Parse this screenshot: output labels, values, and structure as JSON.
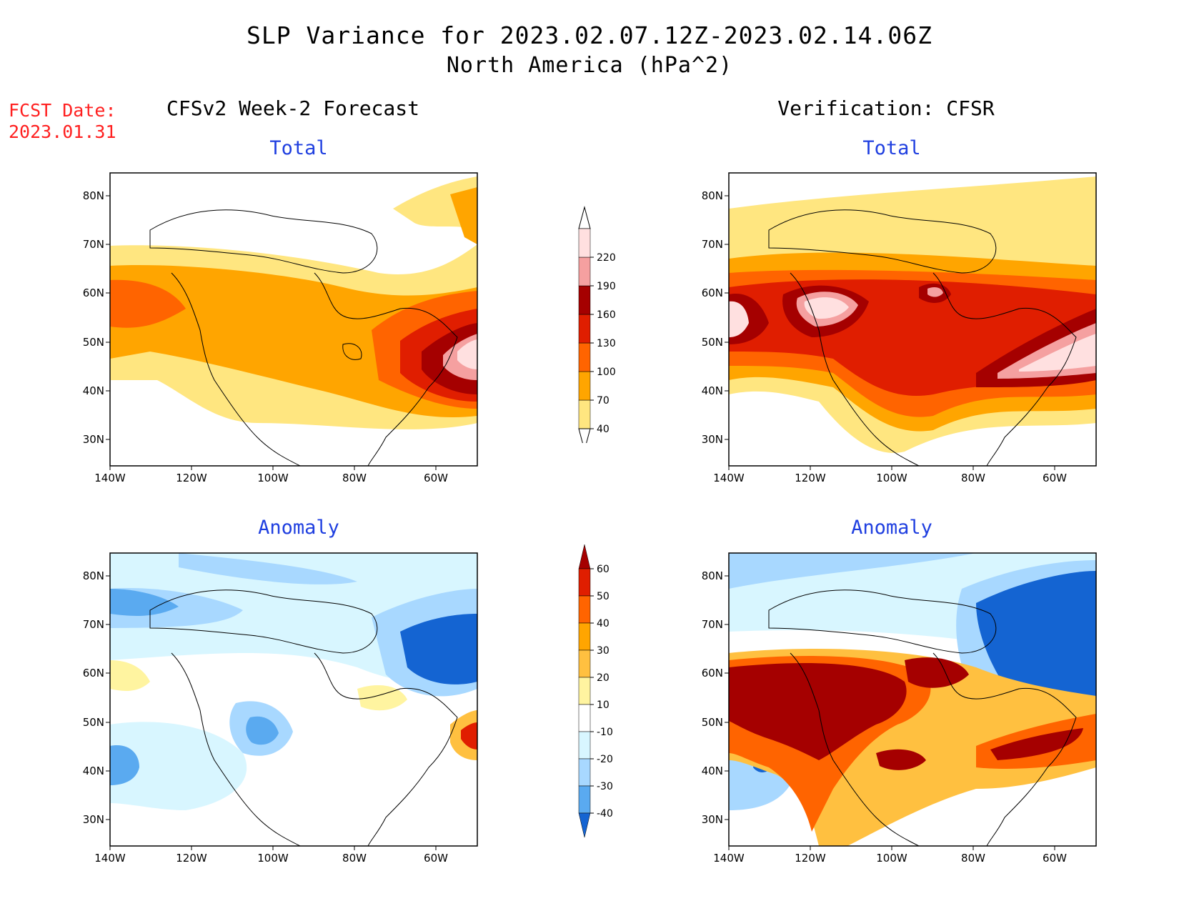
{
  "header": {
    "title": "SLP Variance for 2023.02.07.12Z-2023.02.14.06Z",
    "subtitle": "North America (hPa^2)",
    "fcst_label": "FCST Date:",
    "fcst_value": "2023.01.31"
  },
  "columns": {
    "left": "CFSv2 Week-2 Forecast",
    "right": "Verification: CFSR"
  },
  "panels": {
    "total_label": "Total",
    "anomaly_label": "Anomaly"
  },
  "axes": {
    "lat_ticks": [
      "80N",
      "70N",
      "60N",
      "50N",
      "40N",
      "30N"
    ],
    "lon_ticks": [
      "140W",
      "120W",
      "100W",
      "80W",
      "60W"
    ]
  },
  "colorbars": {
    "total": {
      "levels": [
        "40",
        "70",
        "100",
        "130",
        "160",
        "190",
        "220"
      ],
      "colors": [
        "#ffe680",
        "#ffa500",
        "#ff6400",
        "#e01e00",
        "#a50000",
        "#f5a0a0",
        "#ffe0e0"
      ]
    },
    "anomaly": {
      "levels": [
        "60",
        "50",
        "40",
        "30",
        "20",
        "10",
        "-10",
        "-20",
        "-30",
        "-40"
      ],
      "colors": [
        "#a50000",
        "#e01e00",
        "#ff6400",
        "#ffa500",
        "#ffc040",
        "#fff4a0",
        "#ffffff",
        "#d8f6ff",
        "#a8d8ff",
        "#5aaaf0",
        "#1464d2"
      ]
    }
  }
}
